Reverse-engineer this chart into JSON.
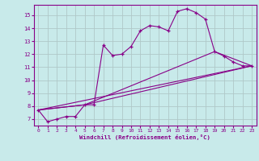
{
  "background_color": "#c8eaea",
  "grid_color": "#b0c8c8",
  "line_color": "#880088",
  "marker_color": "#880088",
  "xlabel": "Windchill (Refroidissement éolien,°C)",
  "xlim": [
    -0.5,
    23.5
  ],
  "ylim": [
    6.5,
    15.8
  ],
  "yticks": [
    7,
    8,
    9,
    10,
    11,
    12,
    13,
    14,
    15
  ],
  "xticks": [
    0,
    1,
    2,
    3,
    4,
    5,
    6,
    7,
    8,
    9,
    10,
    11,
    12,
    13,
    14,
    15,
    16,
    17,
    18,
    19,
    20,
    21,
    22,
    23
  ],
  "main_line_x": [
    0,
    1,
    2,
    3,
    4,
    5,
    6,
    7,
    8,
    9,
    10,
    11,
    12,
    13,
    14,
    15,
    16,
    17,
    18,
    19,
    20,
    21,
    22,
    23
  ],
  "main_line_y": [
    7.7,
    6.8,
    7.0,
    7.2,
    7.2,
    8.1,
    8.1,
    12.7,
    11.9,
    12.0,
    12.6,
    13.8,
    14.2,
    14.1,
    13.8,
    15.3,
    15.5,
    15.2,
    14.7,
    12.2,
    11.85,
    11.4,
    11.1,
    11.1
  ],
  "line2_x": [
    0,
    5,
    23
  ],
  "line2_y": [
    7.7,
    8.1,
    11.1
  ],
  "line3_x": [
    0,
    5,
    19,
    23
  ],
  "line3_y": [
    7.7,
    8.1,
    12.2,
    11.1
  ],
  "line4_x": [
    0,
    23
  ],
  "line4_y": [
    7.7,
    11.1
  ]
}
